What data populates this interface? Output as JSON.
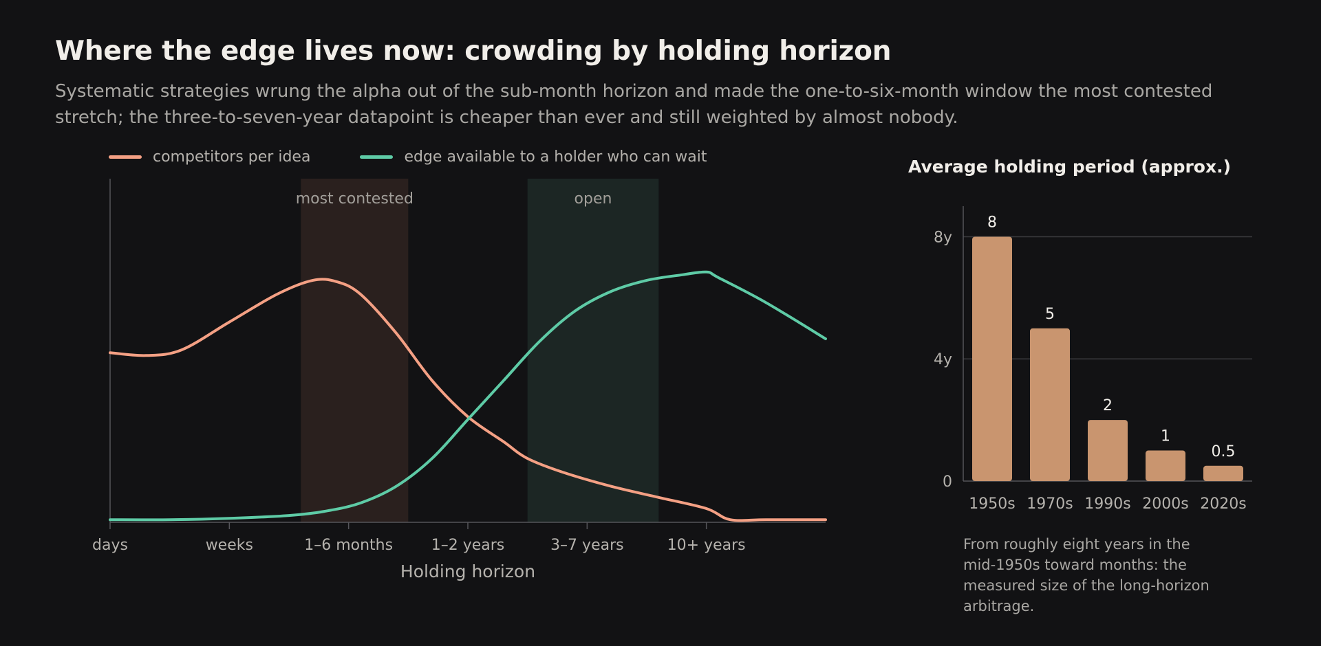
{
  "title": "Where the edge lives now: crowding by holding horizon",
  "subtitle": "Systematic strategies wrung the alpha out of the sub-month horizon and made the one-to-six-month window the most contested stretch; the three-to-seven-year datapoint is cheaper than ever and still weighted by almost nobody.",
  "colors": {
    "background": "#121214",
    "competitors": "#f4a084",
    "edge": "#5ecba6",
    "contested_band": "#2a201e",
    "open_band": "#1c2624",
    "bar": "#c9956f",
    "axis": "#55555a",
    "grid": "#3a3a3e"
  },
  "side_note": "From roughly eight years in the mid-1950s toward months: the measured size of the long-horizon arbitrage.",
  "chart_data": [
    {
      "type": "line",
      "xlabel": "Holding horizon",
      "ylabel": "",
      "y_ticks_shown": false,
      "grid": false,
      "legend_position": "top-left",
      "x_categories": [
        "days",
        "weeks",
        "1–6 months",
        "1–2 years",
        "3–7 years",
        "10+ years"
      ],
      "xlim": [
        0,
        6
      ],
      "ylim": [
        0,
        1
      ],
      "shaded_regions": [
        {
          "label": "most contested",
          "x_range": [
            1.6,
            2.5
          ],
          "color": "#2a201e"
        },
        {
          "label": "open",
          "x_range": [
            3.5,
            4.6
          ],
          "color": "#1c2624"
        }
      ],
      "series": [
        {
          "name": "competitors per idea",
          "color": "#f4a084",
          "x": [
            0,
            0.3,
            0.6,
            1.0,
            1.4,
            1.7,
            1.9,
            2.1,
            2.4,
            2.7,
            3.0,
            3.3,
            3.5,
            3.8,
            4.2,
            4.6,
            5.0,
            5.2,
            5.5,
            6.0
          ],
          "y": [
            0.56,
            0.55,
            0.57,
            0.67,
            0.77,
            0.82,
            0.815,
            0.77,
            0.63,
            0.46,
            0.33,
            0.24,
            0.18,
            0.13,
            0.08,
            0.04,
            0.0,
            -0.04,
            -0.04,
            -0.04
          ]
        },
        {
          "name": "edge available to a holder who can wait",
          "color": "#5ecba6",
          "x": [
            0,
            0.5,
            1.0,
            1.5,
            1.8,
            2.1,
            2.4,
            2.7,
            3.0,
            3.3,
            3.6,
            3.9,
            4.2,
            4.5,
            4.8,
            5.0,
            5.1,
            5.5,
            6.0
          ],
          "y": [
            -0.04,
            -0.04,
            -0.035,
            -0.025,
            -0.01,
            0.02,
            0.08,
            0.18,
            0.32,
            0.46,
            0.6,
            0.71,
            0.78,
            0.82,
            0.84,
            0.85,
            0.83,
            0.74,
            0.61
          ]
        }
      ]
    },
    {
      "type": "bar",
      "title": "Average holding period (approx.)",
      "categories": [
        "1950s",
        "1970s",
        "1990s",
        "2000s",
        "2020s"
      ],
      "values": [
        8,
        5,
        2,
        1,
        0.5
      ],
      "value_labels": [
        "8",
        "5",
        "2",
        "1",
        "0.5"
      ],
      "ylim": [
        0,
        9
      ],
      "y_ticks": [
        0,
        4,
        8
      ],
      "y_tick_labels": [
        "0",
        "4y",
        "8y"
      ],
      "grid": true,
      "color": "#c9956f"
    }
  ]
}
